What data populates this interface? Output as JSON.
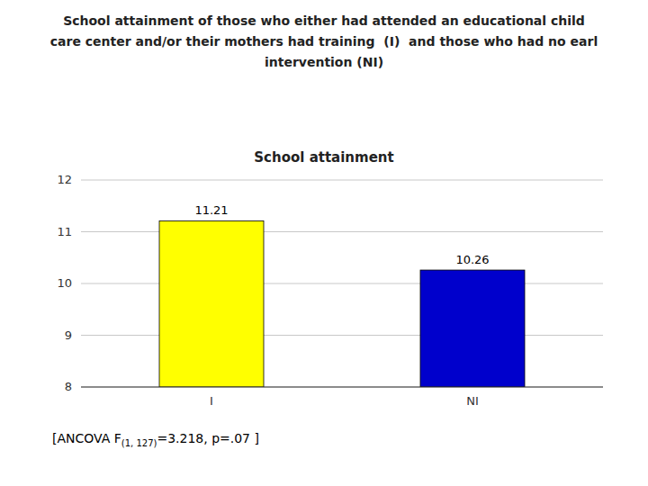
{
  "chart_data": {
    "type": "bar",
    "title": [
      "School attainment of those who either had attended an educational child",
      "care center and/or their mothers had training  (I)  and those who had no earl",
      "intervention (NI)"
    ],
    "subtitle": "School attainment",
    "categories": [
      "I",
      "NI"
    ],
    "values": [
      11.21,
      10.26
    ],
    "colors": [
      "#FFFF00",
      "#0000CC"
    ],
    "ylim": [
      8,
      12
    ],
    "yticks": [
      8,
      9,
      10,
      11,
      12
    ],
    "grid": true,
    "data_labels": true,
    "annotations": [
      "[ANCOVA F",
      "(1, 127)",
      "=3.218, p=.07 ]"
    ]
  }
}
